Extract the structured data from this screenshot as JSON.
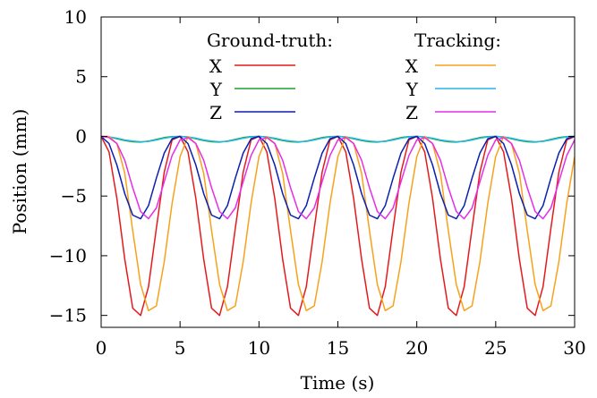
{
  "chart_data": {
    "type": "line",
    "xlabel": "Time (s)",
    "ylabel": "Position (mm)",
    "xlim": [
      0,
      30
    ],
    "ylim": [
      -16,
      10
    ],
    "x_ticks": [
      0,
      5,
      10,
      15,
      20,
      25,
      30
    ],
    "y_ticks": [
      10,
      5,
      0,
      -5,
      -10,
      -15
    ],
    "x_tick_labels": [
      "0",
      "5",
      "10",
      "15",
      "20",
      "25",
      "30"
    ],
    "y_tick_labels": [
      "10",
      "5",
      "0",
      "−5",
      "−10",
      "−15"
    ],
    "grid": false,
    "legend_position": "top-center",
    "legend_groups": [
      {
        "title": "Ground-truth:",
        "entries": [
          {
            "label": "X",
            "color": "#e41a1c"
          },
          {
            "label": "Y",
            "color": "#1aa02a"
          },
          {
            "label": "Z",
            "color": "#0b1fb0"
          }
        ]
      },
      {
        "title": "Tracking:",
        "entries": [
          {
            "label": "X",
            "color": "#f7a21b"
          },
          {
            "label": "Y",
            "color": "#23b7e5"
          },
          {
            "label": "Z",
            "color": "#e62ee6"
          }
        ]
      }
    ],
    "period_s": 5,
    "series": [
      {
        "group": "Ground-truth",
        "axis": "X",
        "color": "#e41a1c",
        "x": [
          0,
          0.5,
          1.0,
          1.5,
          2.0,
          2.5,
          3.0,
          3.5,
          4.0,
          4.5,
          5.0,
          5.5,
          6.0,
          6.5,
          7.0,
          7.5,
          8.0,
          8.5,
          9.0,
          9.5,
          10.0,
          10.5,
          11.0,
          11.5,
          12.0,
          12.5,
          13.0,
          13.5,
          14.0,
          14.5,
          15.0,
          15.5,
          16.0,
          16.5,
          17.0,
          17.5,
          18.0,
          18.5,
          19.0,
          19.5,
          20.0,
          20.5,
          21.0,
          21.5,
          22.0,
          22.5,
          23.0,
          23.5,
          24.0,
          24.5,
          25.0,
          25.5,
          26.0,
          26.5,
          27.0,
          27.5,
          28.0,
          28.5,
          29.0,
          29.5,
          30.0
        ],
        "y": [
          0,
          -1.3,
          -5.2,
          -10.3,
          -14.4,
          -15.0,
          -12.6,
          -7.7,
          -3.0,
          -0.3,
          0,
          -1.3,
          -5.2,
          -10.3,
          -14.4,
          -15.0,
          -12.6,
          -7.7,
          -3.0,
          -0.3,
          0,
          -1.3,
          -5.2,
          -10.3,
          -14.4,
          -15.0,
          -12.6,
          -7.7,
          -3.0,
          -0.3,
          0,
          -1.3,
          -5.2,
          -10.3,
          -14.4,
          -15.0,
          -12.6,
          -7.7,
          -3.0,
          -0.3,
          0,
          -1.3,
          -5.2,
          -10.3,
          -14.4,
          -15.0,
          -12.6,
          -7.7,
          -3.0,
          -0.3,
          0,
          -1.3,
          -5.2,
          -10.3,
          -14.4,
          -15.0,
          -12.6,
          -7.7,
          -3.0,
          -0.3,
          0
        ]
      },
      {
        "group": "Ground-truth",
        "axis": "Y",
        "color": "#1aa02a",
        "x": [
          0,
          0.5,
          1.0,
          1.5,
          2.0,
          2.5,
          3.0,
          3.5,
          4.0,
          4.5,
          5.0,
          5.5,
          6.0,
          6.5,
          7.0,
          7.5,
          8.0,
          8.5,
          9.0,
          9.5,
          10.0,
          10.5,
          11.0,
          11.5,
          12.0,
          12.5,
          13.0,
          13.5,
          14.0,
          14.5,
          15.0,
          15.5,
          16.0,
          16.5,
          17.0,
          17.5,
          18.0,
          18.5,
          19.0,
          19.5,
          20.0,
          20.5,
          21.0,
          21.5,
          22.0,
          22.5,
          23.0,
          23.5,
          24.0,
          24.5,
          25.0,
          25.5,
          26.0,
          26.5,
          27.0,
          27.5,
          28.0,
          28.5,
          29.0,
          29.5,
          30.0
        ],
        "y": [
          0,
          -0.05,
          -0.2,
          -0.35,
          -0.45,
          -0.48,
          -0.4,
          -0.25,
          -0.1,
          -0.02,
          0,
          -0.05,
          -0.2,
          -0.35,
          -0.45,
          -0.48,
          -0.4,
          -0.25,
          -0.1,
          -0.02,
          0,
          -0.05,
          -0.2,
          -0.35,
          -0.45,
          -0.48,
          -0.4,
          -0.25,
          -0.1,
          -0.02,
          0,
          -0.05,
          -0.2,
          -0.35,
          -0.45,
          -0.48,
          -0.4,
          -0.25,
          -0.1,
          -0.02,
          0,
          -0.05,
          -0.2,
          -0.35,
          -0.45,
          -0.48,
          -0.4,
          -0.25,
          -0.1,
          -0.02,
          0,
          -0.05,
          -0.2,
          -0.35,
          -0.45,
          -0.48,
          -0.4,
          -0.25,
          -0.1,
          -0.02,
          0
        ]
      },
      {
        "group": "Ground-truth",
        "axis": "Z",
        "color": "#0b1fb0",
        "x": [
          0,
          0.5,
          1.0,
          1.5,
          2.0,
          2.5,
          3.0,
          3.5,
          4.0,
          4.5,
          5.0,
          5.5,
          6.0,
          6.5,
          7.0,
          7.5,
          8.0,
          8.5,
          9.0,
          9.5,
          10.0,
          10.5,
          11.0,
          11.5,
          12.0,
          12.5,
          13.0,
          13.5,
          14.0,
          14.5,
          15.0,
          15.5,
          16.0,
          16.5,
          17.0,
          17.5,
          18.0,
          18.5,
          19.0,
          19.5,
          20.0,
          20.5,
          21.0,
          21.5,
          22.0,
          22.5,
          23.0,
          23.5,
          24.0,
          24.5,
          25.0,
          25.5,
          26.0,
          26.5,
          27.0,
          27.5,
          28.0,
          28.5,
          29.0,
          29.5,
          30.0
        ],
        "y": [
          0,
          -0.6,
          -2.4,
          -4.8,
          -6.6,
          -6.9,
          -5.8,
          -3.5,
          -1.4,
          -0.2,
          0,
          -0.6,
          -2.4,
          -4.8,
          -6.6,
          -6.9,
          -5.8,
          -3.5,
          -1.4,
          -0.2,
          0,
          -0.6,
          -2.4,
          -4.8,
          -6.6,
          -6.9,
          -5.8,
          -3.5,
          -1.4,
          -0.2,
          0,
          -0.6,
          -2.4,
          -4.8,
          -6.6,
          -6.9,
          -5.8,
          -3.5,
          -1.4,
          -0.2,
          0,
          -0.6,
          -2.4,
          -4.8,
          -6.6,
          -6.9,
          -5.8,
          -3.5,
          -1.4,
          -0.2,
          0,
          -0.6,
          -2.4,
          -4.8,
          -6.6,
          -6.9,
          -5.8,
          -3.5,
          -1.4,
          -0.2,
          0
        ]
      },
      {
        "group": "Tracking",
        "axis": "X",
        "color": "#f7a21b",
        "x": [
          0,
          0.5,
          1.0,
          1.5,
          2.0,
          2.5,
          3.0,
          3.5,
          4.0,
          4.5,
          5.0,
          5.5,
          6.0,
          6.5,
          7.0,
          7.5,
          8.0,
          8.5,
          9.0,
          9.5,
          10.0,
          10.5,
          11.0,
          11.5,
          12.0,
          12.5,
          13.0,
          13.5,
          14.0,
          14.5,
          15.0,
          15.5,
          16.0,
          16.5,
          17.0,
          17.5,
          18.0,
          18.5,
          19.0,
          19.5,
          20.0,
          20.5,
          21.0,
          21.5,
          22.0,
          22.5,
          23.0,
          23.5,
          24.0,
          24.5,
          25.0,
          25.5,
          26.0,
          26.5,
          27.0,
          27.5,
          28.0,
          28.5,
          29.0,
          29.5,
          30.0
        ],
        "y": [
          0,
          0,
          -0.6,
          -3.1,
          -7.9,
          -12.4,
          -14.6,
          -14.2,
          -10.5,
          -5.6,
          -1.7,
          0,
          -0.6,
          -3.1,
          -7.9,
          -12.4,
          -14.6,
          -14.2,
          -10.5,
          -5.6,
          -1.7,
          0,
          -0.6,
          -3.1,
          -7.9,
          -12.4,
          -14.6,
          -14.2,
          -10.5,
          -5.6,
          -1.7,
          0,
          -0.6,
          -3.1,
          -7.9,
          -12.4,
          -14.6,
          -14.2,
          -10.5,
          -5.6,
          -1.7,
          0,
          -0.6,
          -3.1,
          -7.9,
          -12.4,
          -14.6,
          -14.2,
          -10.5,
          -5.6,
          -1.7,
          0,
          -0.6,
          -3.1,
          -7.9,
          -12.4,
          -14.6,
          -14.2,
          -10.5,
          -5.6,
          -1.7
        ]
      },
      {
        "group": "Tracking",
        "axis": "Y",
        "color": "#23b7e5",
        "x": [
          0,
          0.5,
          1.0,
          1.5,
          2.0,
          2.5,
          3.0,
          3.5,
          4.0,
          4.5,
          5.0,
          5.5,
          6.0,
          6.5,
          7.0,
          7.5,
          8.0,
          8.5,
          9.0,
          9.5,
          10.0,
          10.5,
          11.0,
          11.5,
          12.0,
          12.5,
          13.0,
          13.5,
          14.0,
          14.5,
          15.0,
          15.5,
          16.0,
          16.5,
          17.0,
          17.5,
          18.0,
          18.5,
          19.0,
          19.5,
          20.0,
          20.5,
          21.0,
          21.5,
          22.0,
          22.5,
          23.0,
          23.5,
          24.0,
          24.5,
          25.0,
          25.5,
          26.0,
          26.5,
          27.0,
          27.5,
          28.0,
          28.5,
          29.0,
          29.5,
          30.0
        ],
        "y": [
          0,
          -0.05,
          -0.15,
          -0.3,
          -0.4,
          -0.45,
          -0.42,
          -0.3,
          -0.15,
          -0.05,
          0,
          -0.05,
          -0.15,
          -0.3,
          -0.4,
          -0.45,
          -0.42,
          -0.3,
          -0.15,
          -0.05,
          0,
          -0.05,
          -0.15,
          -0.3,
          -0.4,
          -0.45,
          -0.42,
          -0.3,
          -0.15,
          -0.05,
          0,
          -0.05,
          -0.15,
          -0.3,
          -0.4,
          -0.45,
          -0.42,
          -0.3,
          -0.15,
          -0.05,
          0,
          -0.05,
          -0.15,
          -0.3,
          -0.4,
          -0.45,
          -0.42,
          -0.3,
          -0.15,
          -0.05,
          0,
          -0.05,
          -0.15,
          -0.3,
          -0.4,
          -0.45,
          -0.42,
          -0.3,
          -0.15,
          -0.05,
          0
        ]
      },
      {
        "group": "Tracking",
        "axis": "Z",
        "color": "#e62ee6",
        "x": [
          0,
          0.5,
          1.0,
          1.5,
          2.0,
          2.5,
          3.0,
          3.5,
          4.0,
          4.5,
          5.0,
          5.5,
          6.0,
          6.5,
          7.0,
          7.5,
          8.0,
          8.5,
          9.0,
          9.5,
          10.0,
          10.5,
          11.0,
          11.5,
          12.0,
          12.5,
          13.0,
          13.5,
          14.0,
          14.5,
          15.0,
          15.5,
          16.0,
          16.5,
          17.0,
          17.5,
          18.0,
          18.5,
          19.0,
          19.5,
          20.0,
          20.5,
          21.0,
          21.5,
          22.0,
          22.5,
          23.0,
          23.5,
          24.0,
          24.5,
          25.0,
          25.5,
          26.0,
          26.5,
          27.0,
          27.5,
          28.0,
          28.5,
          29.0,
          29.5,
          30.0
        ],
        "y": [
          0,
          -0.1,
          -0.6,
          -2.0,
          -4.3,
          -6.3,
          -6.9,
          -6.0,
          -3.8,
          -1.6,
          -0.3,
          -0.1,
          -0.6,
          -2.0,
          -4.3,
          -6.3,
          -6.9,
          -6.0,
          -3.8,
          -1.6,
          -0.3,
          -0.1,
          -0.6,
          -2.0,
          -4.3,
          -6.3,
          -6.9,
          -6.0,
          -3.8,
          -1.6,
          -0.3,
          -0.1,
          -0.6,
          -2.0,
          -4.3,
          -6.3,
          -6.9,
          -6.0,
          -3.8,
          -1.6,
          -0.3,
          -0.1,
          -0.6,
          -2.0,
          -4.3,
          -6.3,
          -6.9,
          -6.0,
          -3.8,
          -1.6,
          -0.3,
          -0.1,
          -0.6,
          -2.0,
          -4.3,
          -6.3,
          -6.9,
          -6.0,
          -3.8,
          -1.6,
          -0.3
        ]
      }
    ]
  }
}
